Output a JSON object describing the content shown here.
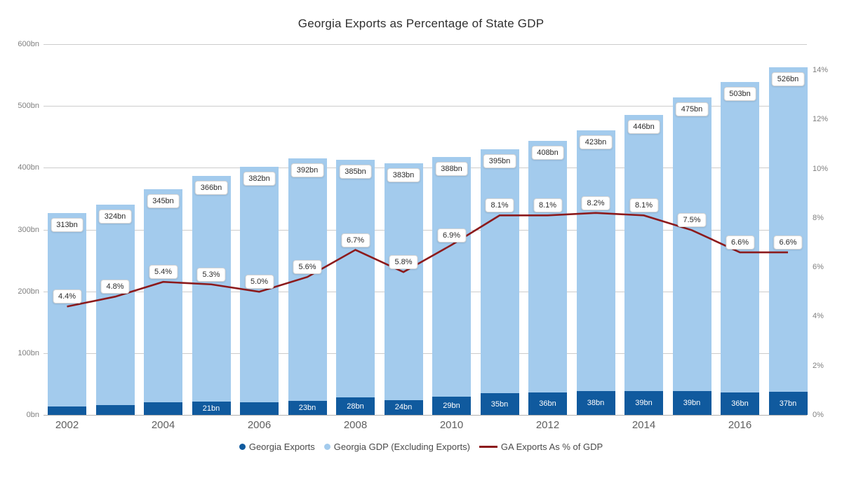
{
  "title": "Georgia Exports as Percentage of State GDP",
  "colors": {
    "exports_bar": "#105a9e",
    "gdp_bar": "#a3cbed",
    "line": "#8c1a1c",
    "grid": "#cccccc",
    "axis_text": "#808080",
    "label_text": "#2b2b2b"
  },
  "chart_data": {
    "type": "stacked-bar+line",
    "categories": [
      "2002",
      "2003",
      "2004",
      "2005",
      "2006",
      "2007",
      "2008",
      "2009",
      "2010",
      "2011",
      "2012",
      "2013",
      "2014",
      "2015",
      "2016",
      "2017"
    ],
    "series": [
      {
        "name": "Georgia Exports",
        "type": "bar",
        "axis": "left",
        "values": [
          14,
          16,
          20,
          21,
          20,
          23,
          28,
          24,
          29,
          35,
          36,
          38,
          39,
          39,
          36,
          37
        ],
        "labels": [
          null,
          null,
          null,
          "21bn",
          null,
          "23bn",
          "28bn",
          "24bn",
          "29bn",
          "35bn",
          "36bn",
          "38bn",
          "39bn",
          "39bn",
          "36bn",
          "37bn"
        ]
      },
      {
        "name": "Georgia GDP (Excluding Exports)",
        "type": "bar",
        "axis": "left",
        "values": [
          313,
          324,
          345,
          366,
          382,
          392,
          385,
          383,
          388,
          395,
          408,
          423,
          446,
          475,
          503,
          526
        ],
        "labels": [
          "313bn",
          "324bn",
          "345bn",
          "366bn",
          "382bn",
          "392bn",
          "385bn",
          "383bn",
          "388bn",
          "395bn",
          "408bn",
          "423bn",
          "446bn",
          "475bn",
          "503bn",
          "526bn"
        ]
      },
      {
        "name": "GA Exports As % of GDP",
        "type": "line",
        "axis": "right",
        "values": [
          4.4,
          4.8,
          5.4,
          5.3,
          5.0,
          5.6,
          6.7,
          5.8,
          6.9,
          8.1,
          8.1,
          8.2,
          8.1,
          7.5,
          6.6,
          6.6
        ],
        "labels": [
          "4.4%",
          "4.8%",
          "5.4%",
          "5.3%",
          "5.0%",
          "5.6%",
          "6.7%",
          "5.8%",
          "6.9%",
          "8.1%",
          "8.1%",
          "8.2%",
          "8.1%",
          "7.5%",
          "6.6%",
          "6.6%"
        ]
      }
    ],
    "left_axis": {
      "min": 0,
      "max": 600,
      "tick_step": 100,
      "tick_labels": [
        "0bn",
        "100bn",
        "200bn",
        "300bn",
        "400bn",
        "500bn",
        "600bn"
      ]
    },
    "right_axis": {
      "min": 0,
      "max": 14,
      "tick_step": 2,
      "tick_labels": [
        "0%",
        "2%",
        "4%",
        "6%",
        "8%",
        "10%",
        "12%",
        "14%"
      ]
    },
    "x_axis_labels": [
      "2002",
      "2004",
      "2006",
      "2008",
      "2010",
      "2012",
      "2014",
      "2016"
    ],
    "grid": true,
    "legend_position": "bottom"
  },
  "legend": {
    "items": [
      {
        "label": "Georgia Exports",
        "marker": "dot",
        "color_key": "exports_bar"
      },
      {
        "label": "Georgia GDP (Excluding Exports)",
        "marker": "dot",
        "color_key": "gdp_bar"
      },
      {
        "label": "GA Exports As % of GDP",
        "marker": "line",
        "color_key": "line"
      }
    ]
  }
}
